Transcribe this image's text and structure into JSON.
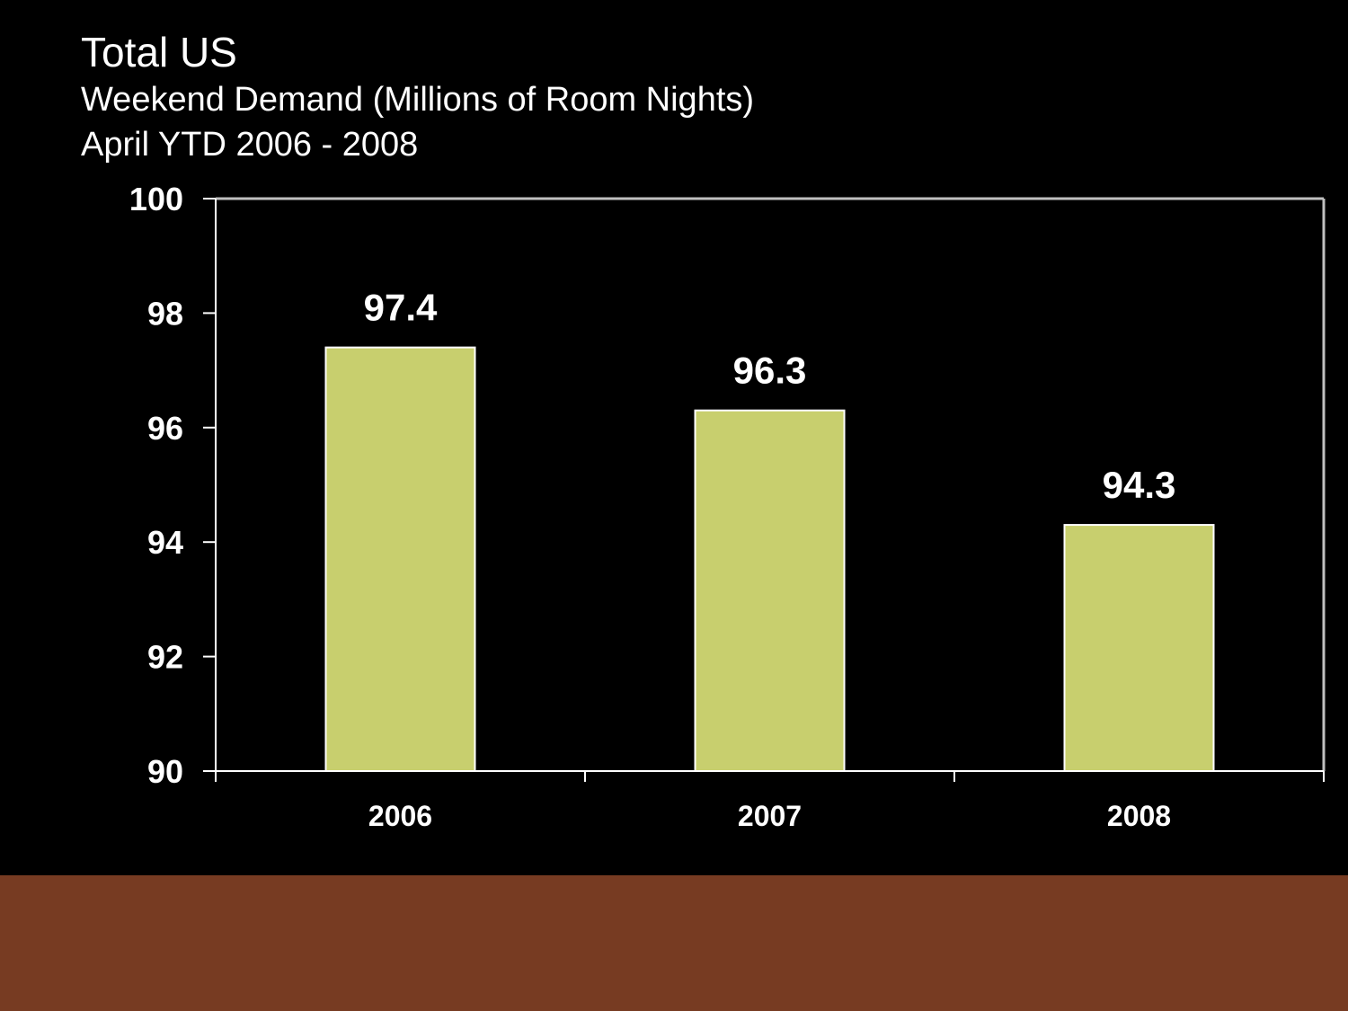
{
  "slide": {
    "title": "Total US",
    "subtitle": "Weekend Demand (Millions of Room Nights)",
    "period": "April YTD 2006 - 2008"
  },
  "colors": {
    "background": "#000000",
    "bar": "#c8cf6e",
    "bar_border": "#ffffff",
    "axis": "#c0c0c0",
    "text": "#ffffff",
    "footer_band": "#773b22"
  },
  "chart_data": {
    "type": "bar",
    "title": "Total US",
    "subtitle": "Weekend Demand (Millions of Room Nights)",
    "xlabel": "",
    "ylabel": "",
    "categories": [
      "2006",
      "2007",
      "2008"
    ],
    "values": [
      97.4,
      96.3,
      94.3
    ],
    "data_labels": [
      "97.4",
      "96.3",
      "94.3"
    ],
    "ylim": [
      90,
      100
    ],
    "yticks": [
      90,
      92,
      94,
      96,
      98,
      100
    ],
    "grid": false,
    "legend": "none"
  }
}
